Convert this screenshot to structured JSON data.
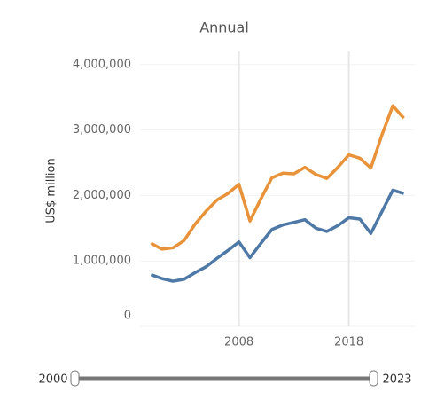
{
  "chart_data": {
    "type": "line",
    "title": "Annual",
    "y_label": "US$ million",
    "x": [
      2000,
      2001,
      2002,
      2003,
      2004,
      2005,
      2006,
      2007,
      2008,
      2009,
      2010,
      2011,
      2012,
      2013,
      2014,
      2015,
      2016,
      2017,
      2018,
      2019,
      2020,
      2021,
      2022,
      2023
    ],
    "series": [
      {
        "color": "#e8923a",
        "values": [
          1270000,
          1180000,
          1200000,
          1310000,
          1560000,
          1760000,
          1930000,
          2030000,
          2170000,
          1610000,
          1950000,
          2270000,
          2340000,
          2330000,
          2430000,
          2320000,
          2260000,
          2430000,
          2620000,
          2570000,
          2420000,
          2920000,
          3370000,
          3180000
        ]
      },
      {
        "color": "#4e79a7",
        "values": [
          790000,
          730000,
          690000,
          720000,
          820000,
          910000,
          1040000,
          1160000,
          1290000,
          1050000,
          1270000,
          1480000,
          1550000,
          1590000,
          1630000,
          1500000,
          1450000,
          1540000,
          1660000,
          1640000,
          1420000,
          1750000,
          2080000,
          2030000
        ]
      }
    ],
    "xlim": [
      1999,
      2024
    ],
    "xticks": [
      2008,
      2018
    ],
    "ylim": [
      0,
      4200000
    ],
    "yticks": [
      0,
      {
        "value": 1000000,
        "label": "1,000,000"
      },
      {
        "value": 2000000,
        "label": "2,000,000"
      },
      {
        "value": 3000000,
        "label": "3,000,000"
      },
      {
        "value": 4000000,
        "label": "4,000,000"
      }
    ],
    "grid": true,
    "slider": {
      "min": 2000,
      "max": 2023
    }
  }
}
